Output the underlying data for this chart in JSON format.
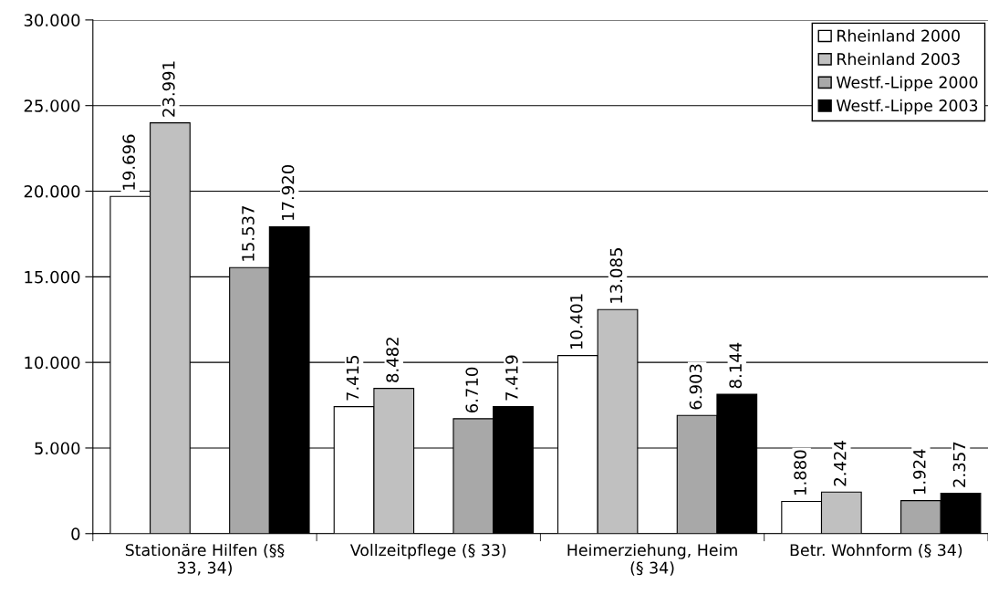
{
  "chart_data": {
    "type": "bar",
    "categories": [
      "Stationäre Hilfen (§§\n33, 34)",
      "Vollzeitpflege (§ 33)",
      "Heimerziehung, Heim\n(§ 34)",
      "Betr. Wohnform (§ 34)"
    ],
    "series": [
      {
        "name": "Rheinland 2000",
        "color": "#ffffff",
        "values": [
          19696,
          7415,
          10401,
          1880
        ],
        "value_labels": [
          "19.696",
          "7.415",
          "10.401",
          "1.880"
        ]
      },
      {
        "name": "Rheinland 2003",
        "color": "#c0c0c0",
        "values": [
          23991,
          8482,
          13085,
          2424
        ],
        "value_labels": [
          "23.991",
          "8.482",
          "13.085",
          "2.424"
        ]
      },
      {
        "name": "Westf.-Lippe 2000",
        "color": "#a8a8a8",
        "values": [
          15537,
          6710,
          6903,
          1924
        ],
        "value_labels": [
          "15.537",
          "6.710",
          "6.903",
          "1.924"
        ]
      },
      {
        "name": "Westf.-Lippe 2003",
        "color": "#000000",
        "values": [
          17920,
          7419,
          8144,
          2357
        ],
        "value_labels": [
          "17.920",
          "7.419",
          "8.144",
          "2.357"
        ]
      }
    ],
    "ylim": [
      0,
      30000
    ],
    "yticks": [
      {
        "value": 0,
        "label": "0"
      },
      {
        "value": 5000,
        "label": "5.000"
      },
      {
        "value": 10000,
        "label": "10.000"
      },
      {
        "value": 15000,
        "label": "15.000"
      },
      {
        "value": 20000,
        "label": "20.000"
      },
      {
        "value": 25000,
        "label": "25.000"
      },
      {
        "value": 30000,
        "label": "30.000"
      }
    ],
    "grid": "y",
    "legend": "top right"
  }
}
